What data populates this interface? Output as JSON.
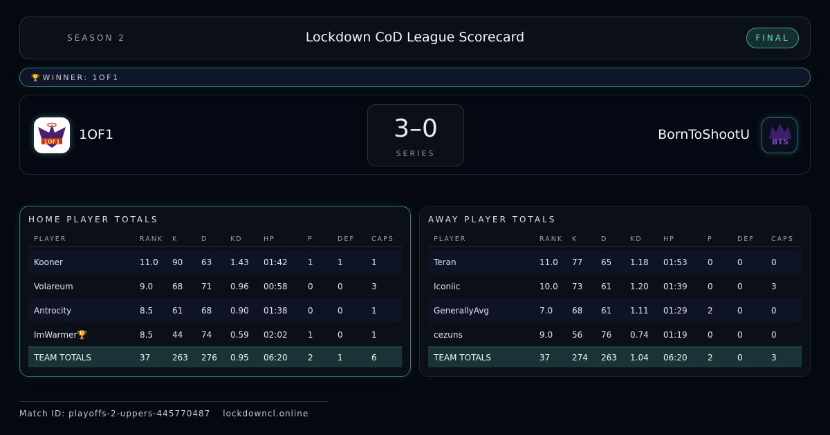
{
  "header": {
    "season": "SEASON 2",
    "title": "Lockdown CoD League Scorecard",
    "status": "FINAL"
  },
  "winner": {
    "icon": "trophy-icon",
    "label": "WINNER: 1OF1"
  },
  "match": {
    "home": {
      "name": "1OF1",
      "logo_text": "1OF1"
    },
    "away": {
      "name": "BornToShootU",
      "logo_text": "BTS"
    },
    "score": "3–0",
    "score_label": "SERIES"
  },
  "columns": [
    "PLAYER",
    "RANK",
    "K",
    "D",
    "KD",
    "HP",
    "P",
    "DEF",
    "CAPS"
  ],
  "home": {
    "title": "HOME PLAYER TOTALS",
    "rows": [
      [
        "Kooner",
        "11.0",
        "90",
        "63",
        "1.43",
        "01:42",
        "1",
        "1",
        "1"
      ],
      [
        "Volareum",
        "9.0",
        "68",
        "71",
        "0.96",
        "00:58",
        "0",
        "0",
        "3"
      ],
      [
        "Antrocity",
        "8.5",
        "61",
        "68",
        "0.90",
        "01:38",
        "0",
        "0",
        "1"
      ],
      [
        "ImWarmer🏆",
        "8.5",
        "44",
        "74",
        "0.59",
        "02:02",
        "1",
        "0",
        "1"
      ]
    ],
    "totals": [
      "TEAM TOTALS",
      "37",
      "263",
      "276",
      "0.95",
      "06:20",
      "2",
      "1",
      "6"
    ]
  },
  "away": {
    "title": "AWAY PLAYER TOTALS",
    "rows": [
      [
        "Teran",
        "11.0",
        "77",
        "65",
        "1.18",
        "01:53",
        "0",
        "0",
        "0"
      ],
      [
        "Iconiic",
        "10.0",
        "73",
        "61",
        "1.20",
        "01:39",
        "0",
        "0",
        "3"
      ],
      [
        "GenerallyAvg",
        "7.0",
        "68",
        "61",
        "1.11",
        "01:29",
        "2",
        "0",
        "0"
      ],
      [
        "cezuns",
        "9.0",
        "56",
        "76",
        "0.74",
        "01:19",
        "0",
        "0",
        "0"
      ]
    ],
    "totals": [
      "TEAM TOTALS",
      "37",
      "274",
      "263",
      "1.04",
      "06:20",
      "2",
      "0",
      "3"
    ]
  },
  "footer": {
    "match_id": "Match ID: playoffs-2-uppers-445770487",
    "site": "lockdowncl.online"
  },
  "colors": {
    "accent": "#3fa59a",
    "background": "#05080f",
    "totals_row": "#1a3336"
  }
}
